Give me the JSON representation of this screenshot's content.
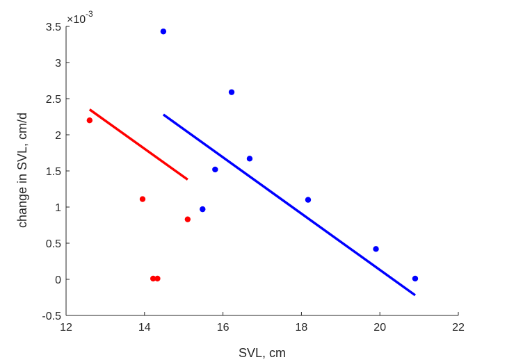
{
  "chart_data": {
    "type": "scatter",
    "xlabel": "SVL, cm",
    "ylabel": "change in SVL, cm/d",
    "y_exponent_label": "×10",
    "y_exponent_power": "-3",
    "xlim": [
      12,
      22
    ],
    "ylim": [
      -0.5,
      3.5
    ],
    "x_ticks": [
      12,
      14,
      16,
      18,
      20,
      22
    ],
    "y_ticks": [
      -0.5,
      0,
      0.5,
      1,
      1.5,
      2,
      2.5,
      3,
      3.5
    ],
    "grid": false,
    "legend": "none",
    "series": [
      {
        "color": "#ff0000",
        "points": [
          {
            "x": 12.6,
            "y": 2.2
          },
          {
            "x": 13.95,
            "y": 1.11
          },
          {
            "x": 14.22,
            "y": 0.01
          },
          {
            "x": 14.33,
            "y": 0.01
          },
          {
            "x": 15.1,
            "y": 0.83
          }
        ],
        "fit_line": [
          {
            "x": 12.6,
            "y": 2.35
          },
          {
            "x": 15.1,
            "y": 1.38
          }
        ]
      },
      {
        "color": "#0000ff",
        "points": [
          {
            "x": 14.48,
            "y": 3.43
          },
          {
            "x": 15.48,
            "y": 0.97
          },
          {
            "x": 15.8,
            "y": 1.52
          },
          {
            "x": 16.22,
            "y": 2.59
          },
          {
            "x": 16.68,
            "y": 1.67
          },
          {
            "x": 18.17,
            "y": 1.1
          },
          {
            "x": 19.9,
            "y": 0.42
          },
          {
            "x": 20.9,
            "y": 0.01
          }
        ],
        "fit_line": [
          {
            "x": 14.48,
            "y": 2.28
          },
          {
            "x": 20.9,
            "y": -0.22
          }
        ]
      }
    ]
  }
}
